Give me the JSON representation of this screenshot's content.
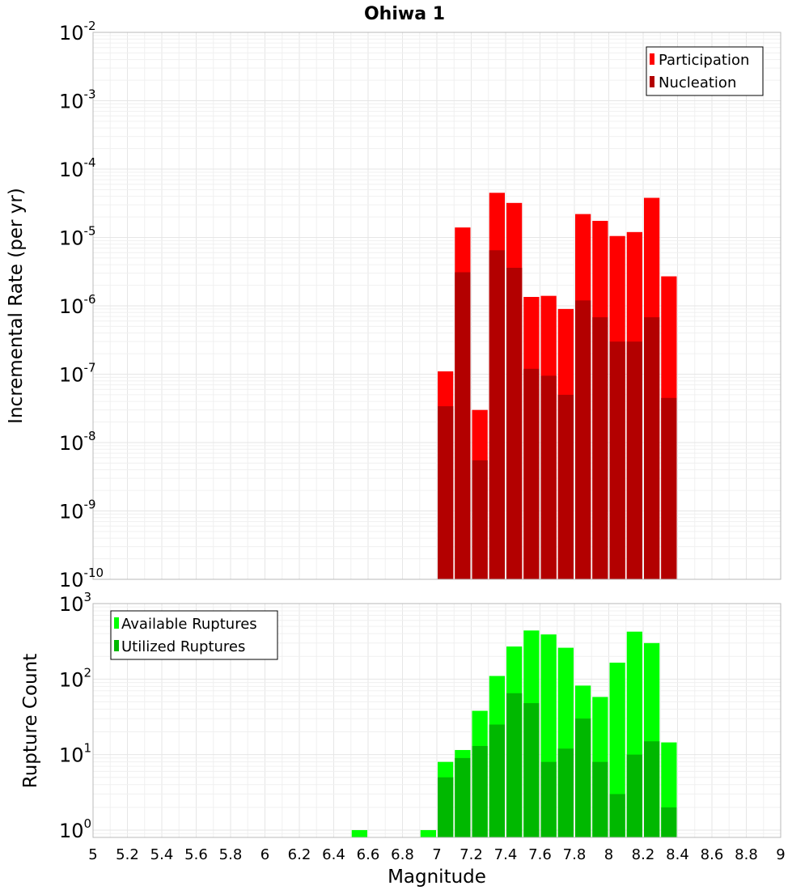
{
  "chart_data": [
    {
      "type": "bar",
      "title": "Ohiwa 1",
      "xlabel": "",
      "ylabel": "Incremental Rate (per yr)",
      "y_scale": "log",
      "xlim": [
        5,
        9
      ],
      "ylim": [
        1e-10,
        0.01
      ],
      "y_ticks": [
        {
          "base": "10",
          "exp": "-10"
        },
        {
          "base": "10",
          "exp": "-9"
        },
        {
          "base": "10",
          "exp": "-8"
        },
        {
          "base": "10",
          "exp": "-7"
        },
        {
          "base": "10",
          "exp": "-6"
        },
        {
          "base": "10",
          "exp": "-5"
        },
        {
          "base": "10",
          "exp": "-4"
        },
        {
          "base": "10",
          "exp": "-3"
        },
        {
          "base": "10",
          "exp": "-2"
        }
      ],
      "legend_position": "top-right",
      "x": [
        7.05,
        7.15,
        7.25,
        7.35,
        7.45,
        7.55,
        7.65,
        7.75,
        7.85,
        7.95,
        8.05,
        8.15,
        8.25,
        8.35
      ],
      "series": [
        {
          "name": "Participation",
          "color": "#ff0000",
          "values": [
            1.1e-07,
            1.4e-05,
            3e-08,
            4.5e-05,
            3.2e-05,
            1.35e-06,
            1.4e-06,
            9e-07,
            2.2e-05,
            1.75e-05,
            1.05e-05,
            1.2e-05,
            3.8e-05,
            2.7e-06
          ]
        },
        {
          "name": "Nucleation",
          "color": "#b30000",
          "values": [
            3.4e-08,
            3.1e-06,
            5.5e-09,
            6.5e-06,
            3.6e-06,
            1.2e-07,
            9.5e-08,
            5e-08,
            1.2e-06,
            6.8e-07,
            3e-07,
            3e-07,
            6.8e-07,
            4.5e-08
          ]
        }
      ]
    },
    {
      "type": "bar",
      "title": "",
      "xlabel": "Magnitude",
      "ylabel": "Rupture Count",
      "y_scale": "log",
      "xlim": [
        5,
        9
      ],
      "ylim": [
        0.8,
        1000
      ],
      "x_ticks": [
        "5",
        "5.2",
        "5.4",
        "5.6",
        "5.8",
        "6",
        "6.2",
        "6.4",
        "6.6",
        "6.8",
        "7",
        "7.2",
        "7.4",
        "7.6",
        "7.8",
        "8",
        "8.2",
        "8.4",
        "8.6",
        "8.8",
        "9"
      ],
      "y_ticks": [
        {
          "base": "10",
          "exp": "0"
        },
        {
          "base": "10",
          "exp": "1"
        },
        {
          "base": "10",
          "exp": "2"
        },
        {
          "base": "10",
          "exp": "3"
        }
      ],
      "legend_position": "top-left",
      "x": [
        6.55,
        6.95,
        7.05,
        7.15,
        7.25,
        7.35,
        7.45,
        7.55,
        7.65,
        7.75,
        7.85,
        7.95,
        8.05,
        8.15,
        8.25,
        8.35
      ],
      "series": [
        {
          "name": "Available Ruptures",
          "color": "#00ff00",
          "values": [
            1,
            1,
            8,
            11.5,
            38,
            110,
            270,
            440,
            390,
            260,
            82,
            58,
            165,
            425,
            300,
            14.5
          ]
        },
        {
          "name": "Utilized Ruptures",
          "color": "#00b800",
          "values": [
            0,
            0,
            5,
            9,
            13,
            25,
            65,
            48,
            8,
            12,
            30,
            8,
            3,
            10,
            15,
            2
          ]
        }
      ]
    }
  ]
}
